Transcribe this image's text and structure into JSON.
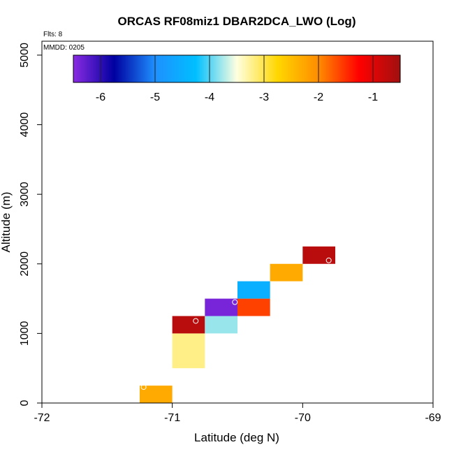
{
  "chart_data": {
    "type": "heatmap",
    "title": "ORCAS RF08miz1 DBAR2DCA_LWO (Log)",
    "annotations": {
      "flights": "Flts: 8",
      "mmdd": "MMDD: 0205"
    },
    "xlabel": "Latitude (deg N)",
    "ylabel": "Altitude (m)",
    "xlim": [
      -72,
      -69
    ],
    "ylim": [
      0,
      5200
    ],
    "xticks": [
      -72,
      -71,
      -70,
      -69
    ],
    "yticks": [
      0,
      1000,
      2000,
      3000,
      4000,
      5000
    ],
    "colorbar": {
      "range": [
        -6.5,
        -0.5
      ],
      "ticks": [
        -6,
        -5,
        -4,
        -3,
        -2,
        -1
      ],
      "stops": [
        "#8a2be2",
        "#0000a0",
        "#1e90ff",
        "#00bfff",
        "#ffffe0",
        "#ffd700",
        "#ff8c00",
        "#ff0000",
        "#a01010"
      ]
    },
    "cells": [
      {
        "lat": [
          -71.25,
          -71.0
        ],
        "alt": [
          0,
          250
        ],
        "value": -2.3
      },
      {
        "lat": [
          -71.0,
          -70.75
        ],
        "alt": [
          500,
          1000
        ],
        "value": -3.2
      },
      {
        "lat": [
          -71.0,
          -70.75
        ],
        "alt": [
          1000,
          1250
        ],
        "value": -0.7
      },
      {
        "lat": [
          -70.75,
          -70.5
        ],
        "alt": [
          1000,
          1250
        ],
        "value": -3.8
      },
      {
        "lat": [
          -70.75,
          -70.5
        ],
        "alt": [
          1250,
          1500
        ],
        "value": -6.4
      },
      {
        "lat": [
          -70.5,
          -70.25
        ],
        "alt": [
          1250,
          1500
        ],
        "value": -1.6
      },
      {
        "lat": [
          -70.5,
          -70.25
        ],
        "alt": [
          1500,
          1750
        ],
        "value": -4.5
      },
      {
        "lat": [
          -70.25,
          -70.0
        ],
        "alt": [
          1750,
          2000
        ],
        "value": -2.3
      },
      {
        "lat": [
          -70.0,
          -69.75
        ],
        "alt": [
          2000,
          2250
        ],
        "value": -0.7
      }
    ],
    "markers": [
      {
        "lat": -71.22,
        "alt": 230
      },
      {
        "lat": -70.82,
        "alt": 1180
      },
      {
        "lat": -70.52,
        "alt": 1450
      },
      {
        "lat": -69.8,
        "alt": 2050
      }
    ]
  }
}
